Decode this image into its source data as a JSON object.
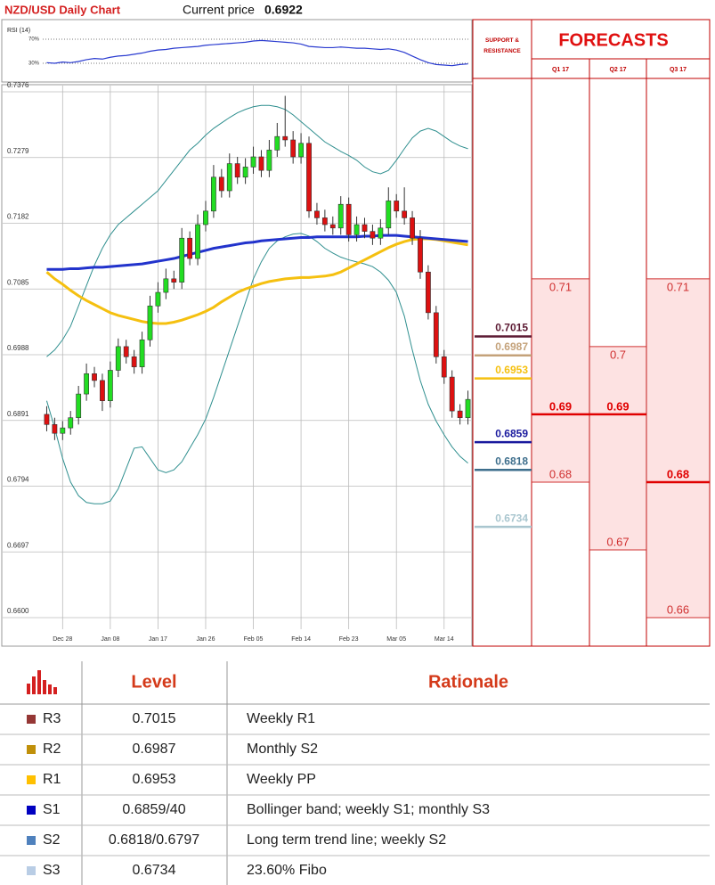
{
  "chart_data": [
    {
      "type": "line",
      "title": "RSI (14)",
      "color": "#2a3bd0",
      "values": [
        31,
        30,
        32,
        31,
        33,
        36,
        38,
        37,
        40,
        42,
        43,
        45,
        47,
        50,
        52,
        53,
        55,
        56,
        57,
        58,
        60,
        61,
        62,
        63,
        64,
        65,
        67,
        68,
        67,
        66,
        65,
        64,
        62,
        58,
        57,
        56,
        56,
        57,
        56,
        55,
        55,
        54,
        53,
        54,
        52,
        48,
        42,
        36,
        31,
        28,
        27,
        26,
        28,
        29
      ],
      "ylim": [
        0,
        100
      ],
      "yticks": [
        {
          "value": 70,
          "label": "70%"
        },
        {
          "value": 30,
          "label": "30%"
        }
      ]
    },
    {
      "type": "candlestick",
      "title": "NZD/USD Daily Chart",
      "current_price_label": "Current price",
      "current_price": 0.6922,
      "categories": [
        null,
        null,
        "Dec 28",
        null,
        null,
        null,
        null,
        null,
        "Jan 08",
        null,
        null,
        null,
        null,
        null,
        "Jan 17",
        null,
        null,
        null,
        null,
        null,
        "Jan 26",
        null,
        null,
        null,
        null,
        null,
        "Feb 05",
        null,
        null,
        null,
        null,
        null,
        "Feb 14",
        null,
        null,
        null,
        null,
        null,
        "Feb 23",
        null,
        null,
        null,
        null,
        null,
        "Mar 05",
        null,
        null,
        null,
        null,
        null,
        "Mar 14",
        null,
        null,
        null
      ],
      "open": [
        0.69,
        0.6885,
        0.6872,
        0.688,
        0.6895,
        0.693,
        0.696,
        0.695,
        0.692,
        0.6965,
        0.7,
        0.6985,
        0.697,
        0.701,
        0.706,
        0.708,
        0.71,
        0.7095,
        0.716,
        0.713,
        0.718,
        0.72,
        0.725,
        0.723,
        0.727,
        0.725,
        0.7265,
        0.728,
        0.726,
        0.729,
        0.731,
        0.7305,
        0.728,
        0.73,
        0.72,
        0.719,
        0.718,
        0.7175,
        0.721,
        0.7165,
        0.718,
        0.717,
        0.716,
        0.7175,
        0.7215,
        0.72,
        0.719,
        0.716,
        0.711,
        0.705,
        0.6985,
        0.6955,
        0.6905,
        0.6895
      ],
      "high": [
        0.6912,
        0.6895,
        0.689,
        0.6905,
        0.6942,
        0.6975,
        0.697,
        0.696,
        0.6978,
        0.7012,
        0.701,
        0.6995,
        0.7022,
        0.7075,
        0.7095,
        0.7115,
        0.7112,
        0.7175,
        0.717,
        0.7195,
        0.7215,
        0.7268,
        0.7262,
        0.7285,
        0.728,
        0.7278,
        0.7295,
        0.729,
        0.7305,
        0.733,
        0.737,
        0.7318,
        0.7315,
        0.731,
        0.7212,
        0.7202,
        0.7192,
        0.7222,
        0.722,
        0.7192,
        0.719,
        0.718,
        0.7188,
        0.7235,
        0.7225,
        0.7235,
        0.72,
        0.7172,
        0.712,
        0.706,
        0.6995,
        0.6965,
        0.6915,
        0.6935
      ],
      "low": [
        0.6875,
        0.6862,
        0.6862,
        0.687,
        0.6885,
        0.692,
        0.694,
        0.6905,
        0.691,
        0.6955,
        0.6975,
        0.696,
        0.696,
        0.7,
        0.705,
        0.707,
        0.7085,
        0.7085,
        0.712,
        0.712,
        0.717,
        0.719,
        0.722,
        0.722,
        0.724,
        0.724,
        0.7255,
        0.725,
        0.725,
        0.728,
        0.7295,
        0.727,
        0.727,
        0.719,
        0.718,
        0.717,
        0.7165,
        0.7165,
        0.7155,
        0.7155,
        0.716,
        0.715,
        0.715,
        0.7165,
        0.719,
        0.718,
        0.715,
        0.71,
        0.704,
        0.6975,
        0.6945,
        0.6895,
        0.6885,
        0.6885
      ],
      "close": [
        0.6885,
        0.6872,
        0.688,
        0.6895,
        0.693,
        0.696,
        0.695,
        0.692,
        0.6965,
        0.7,
        0.6985,
        0.697,
        0.701,
        0.706,
        0.708,
        0.71,
        0.7095,
        0.716,
        0.713,
        0.718,
        0.72,
        0.725,
        0.723,
        0.727,
        0.725,
        0.7265,
        0.728,
        0.726,
        0.729,
        0.731,
        0.7305,
        0.728,
        0.73,
        0.72,
        0.719,
        0.718,
        0.7175,
        0.721,
        0.7165,
        0.718,
        0.717,
        0.716,
        0.7175,
        0.7215,
        0.72,
        0.719,
        0.716,
        0.711,
        0.705,
        0.6985,
        0.6955,
        0.6905,
        0.6895,
        0.6922
      ],
      "up_color": "#22dd22",
      "down_color": "#dd1111",
      "series": [
        {
          "color": "#2f8f8f",
          "width": 1,
          "values": [
            0.6985,
            0.6995,
            0.701,
            0.703,
            0.706,
            0.709,
            0.712,
            0.7145,
            0.7165,
            0.718,
            0.719,
            0.72,
            0.721,
            0.722,
            0.723,
            0.7245,
            0.726,
            0.7275,
            0.729,
            0.73,
            0.7312,
            0.7322,
            0.733,
            0.7338,
            0.7345,
            0.735,
            0.7354,
            0.7356,
            0.7356,
            0.7354,
            0.735,
            0.7342,
            0.7332,
            0.7322,
            0.7312,
            0.7302,
            0.7295,
            0.7288,
            0.7282,
            0.7275,
            0.7265,
            0.7258,
            0.7255,
            0.726,
            0.7275,
            0.7292,
            0.7308,
            0.7318,
            0.7322,
            0.7318,
            0.731,
            0.7302,
            0.7296,
            0.7292
          ]
        },
        {
          "color": "#2f8f8f",
          "width": 1,
          "values": [
            0.692,
            0.688,
            0.6835,
            0.68,
            0.678,
            0.677,
            0.6768,
            0.6768,
            0.6772,
            0.679,
            0.682,
            0.685,
            0.6852,
            0.6835,
            0.6818,
            0.6814,
            0.6818,
            0.683,
            0.685,
            0.687,
            0.6893,
            0.6925,
            0.696,
            0.6995,
            0.703,
            0.7065,
            0.71,
            0.7125,
            0.7145,
            0.7156,
            0.7162,
            0.7166,
            0.7167,
            0.7163,
            0.7155,
            0.7145,
            0.7138,
            0.7132,
            0.7128,
            0.7125,
            0.7122,
            0.7118,
            0.711,
            0.7098,
            0.708,
            0.7045,
            0.6995,
            0.695,
            0.6915,
            0.689,
            0.687,
            0.6852,
            0.6838,
            0.6828
          ]
        },
        {
          "color": "#f5c010",
          "width": 3,
          "values": [
            0.711,
            0.71,
            0.7092,
            0.7083,
            0.7075,
            0.7068,
            0.7062,
            0.7056,
            0.705,
            0.7046,
            0.7043,
            0.704,
            0.7037,
            0.7035,
            0.7034,
            0.7034,
            0.7036,
            0.7039,
            0.7043,
            0.7047,
            0.7052,
            0.7058,
            0.7066,
            0.7073,
            0.708,
            0.7085,
            0.7089,
            0.7093,
            0.7096,
            0.7098,
            0.71,
            0.7101,
            0.7102,
            0.7102,
            0.7103,
            0.7104,
            0.7106,
            0.711,
            0.7116,
            0.7122,
            0.7128,
            0.7134,
            0.714,
            0.7146,
            0.7151,
            0.7155,
            0.7158,
            0.7159,
            0.7159,
            0.7158,
            0.7156,
            0.7154,
            0.7152,
            0.715
          ]
        },
        {
          "color": "#2233cc",
          "width": 3,
          "values": [
            0.7114,
            0.7114,
            0.7114,
            0.7115,
            0.7115,
            0.7116,
            0.7117,
            0.7117,
            0.7118,
            0.7119,
            0.712,
            0.7121,
            0.7122,
            0.7124,
            0.7126,
            0.7128,
            0.713,
            0.7133,
            0.7136,
            0.7139,
            0.7142,
            0.7145,
            0.7147,
            0.7149,
            0.7151,
            0.7153,
            0.7154,
            0.7156,
            0.7157,
            0.7158,
            0.7159,
            0.716,
            0.7161,
            0.7161,
            0.7162,
            0.7162,
            0.7162,
            0.7162,
            0.7162,
            0.7162,
            0.7163,
            0.7163,
            0.7164,
            0.7164,
            0.7164,
            0.7163,
            0.7162,
            0.7161,
            0.716,
            0.7159,
            0.7158,
            0.7157,
            0.7156,
            0.7155
          ]
        }
      ],
      "ylim": [
        0.66,
        0.7376
      ],
      "yticks": [
        0.7376,
        0.7279,
        0.7182,
        0.7085,
        0.6988,
        0.6891,
        0.6794,
        0.6697,
        {
          "value": 0.66,
          "label": "0.6600"
        }
      ],
      "grid": true,
      "levels_title": "SUPPORT & RESISTANCE",
      "levels": [
        {
          "value": 0.7015,
          "color": "#5c1a33"
        },
        {
          "value": 0.6987,
          "color": "#c4a27a"
        },
        {
          "value": 0.6953,
          "color": "#f5c010"
        },
        {
          "value": 0.6859,
          "color": "#1a1a9e"
        },
        {
          "value": 0.6818,
          "color": "#3d6e8c"
        },
        {
          "value": 0.6734,
          "color": "#a9c6cf"
        }
      ],
      "forecast_title": "FORECASTS",
      "forecasts": [
        {
          "name": "Q1 17",
          "high": 0.71,
          "target": 0.69,
          "low": 0.68
        },
        {
          "name": "Q2 17",
          "high": 0.7,
          "target": 0.69,
          "low": 0.67
        },
        {
          "name": "Q3 17",
          "high": 0.71,
          "target": 0.68,
          "low": 0.66
        }
      ]
    }
  ],
  "table": {
    "header": [
      "Level",
      "Rationale"
    ],
    "rows": [
      {
        "name": "R3",
        "color": "#953735",
        "level": "0.7015",
        "rationale": "Weekly R1"
      },
      {
        "name": "R2",
        "color": "#c0900a",
        "level": "0.6987",
        "rationale": "Monthly S2"
      },
      {
        "name": "R1",
        "color": "#ffc000",
        "level": "0.6953",
        "rationale": "Weekly PP"
      },
      {
        "name": "S1",
        "color": "#0000c0",
        "level": "0.6859/40",
        "rationale": "Bollinger band; weekly S1; monthly S3"
      },
      {
        "name": "S2",
        "color": "#4f81bd",
        "level": "0.6818/0.6797",
        "rationale": "Long term trend line; weekly S2"
      },
      {
        "name": "S3",
        "color": "#b9cde5",
        "level": "0.6734",
        "rationale": "23.60% Fibo"
      }
    ]
  }
}
